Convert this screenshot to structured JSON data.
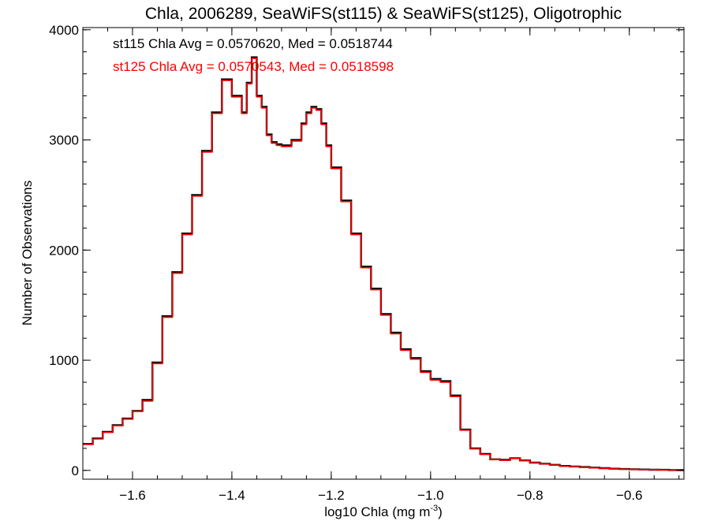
{
  "chart_data": {
    "type": "line",
    "title": "Chla, 2006289, SeaWiFS(st115) & SeaWiFS(st125), Oligotrophic",
    "xlabel": "log10 Chla (mg m",
    "xlabel_superscript": "-3",
    "xlabel_suffix": ")",
    "ylabel": "Number of Observations",
    "xlim": [
      -1.7,
      -0.49
    ],
    "ylim": [
      -80,
      4020
    ],
    "x_ticks": [
      -1.6,
      -1.4,
      -1.2,
      -1.0,
      -0.8,
      -0.6
    ],
    "x_tick_labels": [
      "−1.6",
      "−1.4",
      "−1.2",
      "−1.0",
      "−0.8",
      "−0.6"
    ],
    "y_ticks": [
      0,
      1000,
      2000,
      3000,
      4000
    ],
    "y_tick_labels": [
      "0",
      "1000",
      "2000",
      "3000",
      "4000"
    ],
    "annotations": [
      {
        "text": "st115 Chla Avg = 0.0570620, Med = 0.0518744",
        "color": "#000000"
      },
      {
        "text": "st125 Chla Avg = 0.0570543, Med = 0.0518598",
        "color": "#ff0000"
      }
    ],
    "grid": false,
    "series": [
      {
        "color": "#000000",
        "x": [
          -1.7,
          -1.68,
          -1.66,
          -1.64,
          -1.62,
          -1.6,
          -1.58,
          -1.56,
          -1.54,
          -1.52,
          -1.5,
          -1.48,
          -1.46,
          -1.44,
          -1.42,
          -1.4,
          -1.38,
          -1.37,
          -1.36,
          -1.35,
          -1.34,
          -1.33,
          -1.32,
          -1.31,
          -1.3,
          -1.28,
          -1.26,
          -1.25,
          -1.24,
          -1.23,
          -1.22,
          -1.21,
          -1.2,
          -1.18,
          -1.16,
          -1.14,
          -1.12,
          -1.1,
          -1.08,
          -1.06,
          -1.04,
          -1.02,
          -1.0,
          -0.98,
          -0.96,
          -0.94,
          -0.92,
          -0.9,
          -0.88,
          -0.86,
          -0.84,
          -0.82,
          -0.8,
          -0.78,
          -0.76,
          -0.74,
          -0.72,
          -0.7,
          -0.68,
          -0.66,
          -0.64,
          -0.62,
          -0.6,
          -0.58,
          -0.56,
          -0.54,
          -0.52,
          -0.5
        ],
        "y": [
          240,
          290,
          350,
          410,
          470,
          540,
          640,
          980,
          1400,
          1800,
          2150,
          2500,
          2900,
          3250,
          3550,
          3400,
          3250,
          3520,
          3750,
          3400,
          3300,
          3050,
          2980,
          2960,
          2950,
          3000,
          3150,
          3250,
          3300,
          3280,
          3150,
          2950,
          2750,
          2450,
          2150,
          1850,
          1650,
          1420,
          1250,
          1100,
          1020,
          900,
          830,
          810,
          680,
          370,
          200,
          150,
          100,
          95,
          110,
          90,
          70,
          60,
          50,
          40,
          35,
          30,
          25,
          20,
          15,
          12,
          10,
          8,
          6,
          5,
          3,
          2
        ]
      },
      {
        "color": "#ff0000",
        "x": [
          -1.7,
          -1.68,
          -1.66,
          -1.64,
          -1.62,
          -1.6,
          -1.58,
          -1.56,
          -1.54,
          -1.52,
          -1.5,
          -1.48,
          -1.46,
          -1.44,
          -1.42,
          -1.4,
          -1.38,
          -1.37,
          -1.36,
          -1.35,
          -1.34,
          -1.33,
          -1.32,
          -1.31,
          -1.3,
          -1.28,
          -1.26,
          -1.25,
          -1.24,
          -1.23,
          -1.22,
          -1.21,
          -1.2,
          -1.18,
          -1.16,
          -1.14,
          -1.12,
          -1.1,
          -1.08,
          -1.06,
          -1.04,
          -1.02,
          -1.0,
          -0.98,
          -0.96,
          -0.94,
          -0.92,
          -0.9,
          -0.88,
          -0.86,
          -0.84,
          -0.82,
          -0.8,
          -0.78,
          -0.76,
          -0.74,
          -0.72,
          -0.7,
          -0.68,
          -0.66,
          -0.64,
          -0.62,
          -0.6,
          -0.58,
          -0.56,
          -0.54,
          -0.52,
          -0.5
        ],
        "y": [
          235,
          285,
          345,
          405,
          465,
          535,
          630,
          970,
          1390,
          1790,
          2140,
          2490,
          2890,
          3240,
          3540,
          3390,
          3240,
          3510,
          3740,
          3390,
          3290,
          3040,
          2970,
          2950,
          2940,
          2990,
          3140,
          3240,
          3290,
          3270,
          3140,
          2940,
          2740,
          2440,
          2140,
          1840,
          1640,
          1410,
          1240,
          1090,
          1010,
          890,
          820,
          800,
          670,
          365,
          195,
          145,
          98,
          92,
          108,
          88,
          68,
          58,
          48,
          38,
          33,
          28,
          23,
          18,
          14,
          11,
          9,
          7,
          5,
          4,
          2,
          1
        ]
      }
    ]
  }
}
